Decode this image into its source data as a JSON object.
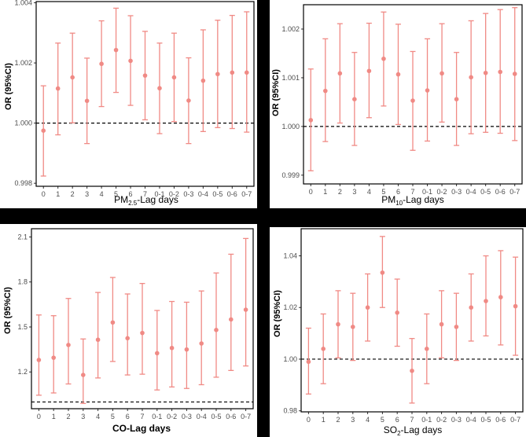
{
  "colors": {
    "point": "#f08a85",
    "reference": "#000000",
    "background": "#ffffff"
  },
  "chart_data": [
    {
      "type": "scatter",
      "ylabel": "OR (95%CI)",
      "xlabel_main": "PM",
      "xlabel_sub": "2.5",
      "xlabel_rest": "-Lag days",
      "categories": [
        "0",
        "1",
        "2",
        "3",
        "4",
        "5",
        "6",
        "7",
        "0-1",
        "0-2",
        "0-3",
        "0-4",
        "0-5",
        "0-6",
        "0-7"
      ],
      "series": [
        {
          "name": "OR",
          "values": [
            0.99975,
            1.00115,
            1.00152,
            1.00074,
            1.00197,
            1.00243,
            1.00207,
            1.00158,
            1.00116,
            1.00152,
            1.00075,
            1.00141,
            1.00163,
            1.00168,
            1.00168
          ],
          "lower": [
            0.99824,
            0.99961,
            1.00001,
            0.99932,
            1.00055,
            1.00102,
            1.00059,
            1.00011,
            0.99965,
            1.00005,
            0.99932,
            0.99972,
            0.99985,
            0.99982,
            0.9997
          ],
          "upper": [
            1.00124,
            1.00266,
            1.00299,
            1.00216,
            1.0034,
            1.00382,
            1.00357,
            1.00305,
            1.00266,
            1.00299,
            1.00217,
            1.0031,
            1.00342,
            1.00358,
            1.0037
          ]
        }
      ],
      "reference": 1.0,
      "yticks": [
        0.998,
        1.0,
        1.002,
        1.004
      ],
      "ytick_labels": [
        "0.998",
        "1.000",
        "1.002",
        "1.004"
      ],
      "ylim": [
        0.9979,
        1.00404
      ]
    },
    {
      "type": "scatter",
      "ylabel": "OR (95%CI)",
      "xlabel_main": "PM",
      "xlabel_sub": "10",
      "xlabel_rest": "-Lag days",
      "categories": [
        "0",
        "1",
        "2",
        "3",
        "4",
        "5",
        "6",
        "7",
        "0-1",
        "0-2",
        "0-3",
        "0-4",
        "0-5",
        "0-6",
        "0-7"
      ],
      "series": [
        {
          "name": "OR",
          "values": [
            1.00013,
            1.00073,
            1.00109,
            1.00056,
            1.00114,
            1.00139,
            1.00107,
            1.00053,
            1.00074,
            1.00109,
            1.00056,
            1.00101,
            1.0011,
            1.00112,
            1.00108
          ],
          "lower": [
            0.99909,
            0.99969,
            1.00007,
            0.99961,
            1.00018,
            1.00042,
            1.00004,
            0.99951,
            0.9997,
            1.00009,
            0.99961,
            0.99985,
            0.99988,
            0.99986,
            0.99971
          ],
          "upper": [
            1.00118,
            1.0018,
            1.00211,
            1.00152,
            1.00212,
            1.00235,
            1.0021,
            1.00154,
            1.0018,
            1.00211,
            1.00152,
            1.00217,
            1.00232,
            1.0024,
            1.00244
          ]
        }
      ],
      "reference": 1.0,
      "yticks": [
        0.999,
        1.0,
        1.001,
        1.002
      ],
      "ytick_labels": [
        "0.999",
        "1.000",
        "1.001",
        "1.002"
      ],
      "ylim": [
        0.99882,
        1.0025
      ]
    },
    {
      "type": "scatter",
      "ylabel": "OR (95%CI)",
      "xlabel_main": "CO-Lag days",
      "xlabel_sub": "",
      "xlabel_rest": "",
      "categories": [
        "0",
        "1",
        "2",
        "3",
        "4",
        "5",
        "6",
        "7",
        "0-1",
        "0-2",
        "0-3",
        "0-4",
        "0-5",
        "0-6",
        "0-7"
      ],
      "series": [
        {
          "name": "OR",
          "values": [
            1.28,
            1.295,
            1.38,
            1.18,
            1.415,
            1.53,
            1.425,
            1.46,
            1.325,
            1.36,
            1.35,
            1.39,
            1.48,
            1.55,
            1.615
          ],
          "lower": [
            1.045,
            1.06,
            1.12,
            0.99,
            1.16,
            1.27,
            1.18,
            1.185,
            1.08,
            1.1,
            1.09,
            1.115,
            1.165,
            1.21,
            1.24
          ],
          "upper": [
            1.58,
            1.575,
            1.69,
            1.42,
            1.73,
            1.83,
            1.72,
            1.79,
            1.61,
            1.67,
            1.665,
            1.74,
            1.86,
            1.985,
            2.09
          ]
        }
      ],
      "reference": 1.0,
      "yticks": [
        1.2,
        1.5,
        1.8,
        2.1
      ],
      "ytick_labels": [
        "1.2",
        "1.5",
        "1.8",
        "2.1"
      ],
      "ylim": [
        0.955,
        2.155
      ]
    },
    {
      "type": "scatter",
      "ylabel": "OR (95%CI)",
      "xlabel_main": "SO",
      "xlabel_sub": "2",
      "xlabel_rest": "-Lag days",
      "categories": [
        "0",
        "1",
        "2",
        "3",
        "4",
        "5",
        "6",
        "7",
        "0-1",
        "0-2",
        "0-3",
        "0-4",
        "0-5",
        "0-6",
        "0-7"
      ],
      "series": [
        {
          "name": "OR",
          "values": [
            0.999,
            1.004,
            1.0135,
            1.0125,
            1.02,
            1.0335,
            1.018,
            0.9955,
            1.004,
            1.0135,
            1.0125,
            1.02,
            1.0225,
            1.024,
            1.0205
          ],
          "lower": [
            0.9865,
            0.9905,
            1.0005,
            0.9995,
            1.007,
            1.02,
            1.005,
            0.983,
            0.9905,
            1.0005,
            0.9995,
            1.007,
            1.009,
            1.0055,
            1.0015
          ],
          "upper": [
            1.012,
            1.0175,
            1.0265,
            1.0255,
            1.033,
            1.0475,
            1.031,
            1.008,
            1.0175,
            1.0265,
            1.0255,
            1.033,
            1.04,
            1.042,
            1.0395
          ]
        }
      ],
      "reference": 1.0,
      "yticks": [
        0.98,
        1.0,
        1.02,
        1.04
      ],
      "ytick_labels": [
        "0.98",
        "1.00",
        "1.02",
        "1.04"
      ],
      "ylim": [
        0.9796,
        1.0505
      ]
    }
  ]
}
